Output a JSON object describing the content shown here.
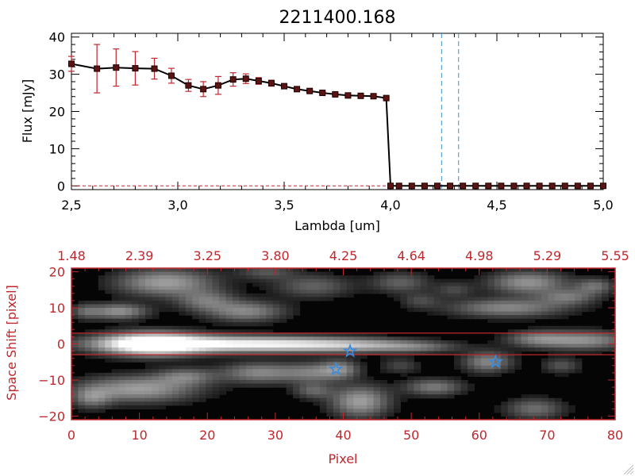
{
  "title": "2211400.168",
  "colors": {
    "axis": "#000000",
    "accent": "#c0272d",
    "dash": "#3b8fd0",
    "star": "#3a8be0",
    "line": "#000000"
  },
  "chart_data": [
    {
      "type": "line",
      "title": "2211400.168",
      "xlabel": "Lambda [um]",
      "ylabel": "Flux [mJy]",
      "xlim": [
        2.5,
        5.0
      ],
      "ylim": [
        -1,
        41
      ],
      "xticks": [
        2.5,
        3.0,
        3.5,
        4.0,
        4.5,
        5.0
      ],
      "xtick_labels": [
        "2,5",
        "3,0",
        "3,5",
        "4,0",
        "4,5",
        "5,0"
      ],
      "yticks": [
        0,
        10,
        20,
        30,
        40
      ],
      "ytick_labels": [
        "0",
        "10",
        "20",
        "30",
        "40"
      ],
      "grid": false,
      "series": [
        {
          "x": [
            2.5,
            2.62,
            2.71,
            2.8,
            2.89,
            2.97,
            3.05,
            3.12,
            3.19,
            3.26,
            3.32,
            3.38,
            3.44,
            3.5,
            3.56,
            3.62,
            3.68,
            3.74,
            3.8,
            3.86,
            3.92,
            3.98,
            4.0,
            4.04,
            4.1,
            4.16,
            4.22,
            4.28,
            4.34,
            4.4,
            4.46,
            4.52,
            4.58,
            4.64,
            4.7,
            4.76,
            4.82,
            4.88,
            4.94,
            5.0
          ],
          "y": [
            32.8,
            31.5,
            31.8,
            31.6,
            31.5,
            29.6,
            27.0,
            26.0,
            27.0,
            28.6,
            28.8,
            28.2,
            27.6,
            26.8,
            26.0,
            25.5,
            25.0,
            24.6,
            24.3,
            24.2,
            24.1,
            23.6,
            0,
            0,
            0,
            0,
            0,
            0,
            0,
            0,
            0,
            0,
            0,
            0,
            0,
            0,
            0,
            0,
            0,
            0
          ],
          "yerr": [
            2.0,
            6.5,
            5.0,
            4.5,
            2.8,
            2.0,
            1.6,
            2.0,
            2.4,
            1.8,
            1.3,
            0.9,
            0.8,
            0.6,
            0.5,
            0.4,
            0.4,
            0.3,
            0.3,
            0.3,
            0.3,
            0.3,
            0,
            0,
            0,
            0,
            0,
            0,
            0,
            0,
            0,
            0,
            0,
            0,
            0,
            0,
            0,
            0,
            0,
            0
          ]
        }
      ],
      "vlines": [
        4.24,
        4.32
      ]
    },
    {
      "type": "heatmap",
      "xlabel": "Pixel",
      "ylabel": "Space Shift [pixel]",
      "xlim": [
        0,
        80
      ],
      "ylim": [
        -21,
        21
      ],
      "xticks": [
        0,
        10,
        20,
        30,
        40,
        50,
        60,
        70,
        80
      ],
      "xtick_labels": [
        "0",
        "10",
        "20",
        "30",
        "40",
        "50",
        "60",
        "70",
        "80"
      ],
      "yticks": [
        -20,
        -10,
        0,
        10,
        20
      ],
      "ytick_labels": [
        "−20",
        "−10",
        "0",
        "10",
        "20"
      ],
      "top_axis_labels": [
        "1.48",
        "2.39",
        "3.25",
        "3.80",
        "4.25",
        "4.64",
        "4.98",
        "5.29",
        "5.55"
      ],
      "hlines": [
        3,
        -3
      ],
      "markers": [
        [
          41,
          -2
        ],
        [
          38.9,
          -7
        ],
        [
          62.4,
          -5
        ]
      ],
      "blobs": [
        [
          12,
          0,
          5,
          2.2,
          1.0
        ],
        [
          20,
          0,
          12,
          1.6,
          0.62
        ],
        [
          32,
          -0.2,
          10,
          1.4,
          0.5
        ],
        [
          44,
          -0.5,
          7,
          1.3,
          0.35
        ],
        [
          52,
          -1.0,
          4,
          1.0,
          0.2
        ],
        [
          14,
          17,
          5,
          2.6,
          0.55
        ],
        [
          7,
          9,
          3,
          1.5,
          0.5
        ],
        [
          26,
          9,
          4,
          2,
          0.45
        ],
        [
          20,
          12,
          3,
          2,
          0.35
        ],
        [
          36,
          16,
          4,
          2.2,
          0.3
        ],
        [
          29,
          20,
          3,
          1.5,
          0.25
        ],
        [
          49,
          17,
          3,
          2,
          0.3
        ],
        [
          52,
          12,
          2,
          1.5,
          0.2
        ],
        [
          68,
          17,
          4,
          2.2,
          0.5
        ],
        [
          65,
          10,
          6,
          1.8,
          0.45
        ],
        [
          74,
          13,
          3,
          1.5,
          0.35
        ],
        [
          76,
          1,
          5,
          1.8,
          0.5
        ],
        [
          69,
          1.5,
          3,
          1.5,
          0.3
        ],
        [
          78,
          16,
          2,
          1.5,
          0.35
        ],
        [
          10,
          -12.5,
          6,
          2.5,
          0.55
        ],
        [
          3,
          -15,
          2,
          2,
          0.35
        ],
        [
          17,
          -9,
          3,
          1.6,
          0.35
        ],
        [
          28,
          -8,
          4,
          2,
          0.45
        ],
        [
          36,
          -8,
          3,
          2,
          0.35
        ],
        [
          40,
          -7,
          2,
          1.8,
          0.4
        ],
        [
          43,
          -16,
          3,
          3,
          0.55
        ],
        [
          36,
          -13,
          2,
          1.5,
          0.3
        ],
        [
          54,
          -12,
          3,
          1.6,
          0.4
        ],
        [
          49,
          -6,
          2,
          1.5,
          0.2
        ],
        [
          62,
          -5,
          2.5,
          2,
          0.45
        ],
        [
          69,
          -18,
          3,
          2,
          0.35
        ],
        [
          73,
          -6,
          2,
          1.5,
          0.25
        ],
        [
          2,
          9,
          1.5,
          1.5,
          0.25
        ],
        [
          57,
          15,
          2,
          1.5,
          0.2
        ]
      ]
    }
  ]
}
